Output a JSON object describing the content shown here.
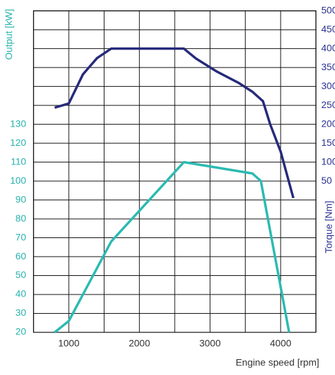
{
  "chart_data": {
    "type": "line",
    "x_label": "Engine speed [rpm]",
    "y_label": "Output [kW]",
    "y2_label": "Torque [Nm]",
    "xlim": [
      500,
      4500
    ],
    "xticks": [
      1000,
      2000,
      3000,
      4000
    ],
    "xgrid": [
      500,
      1000,
      1500,
      2000,
      2500,
      3000,
      3500,
      4000,
      4500
    ],
    "ylim": [
      20,
      190
    ],
    "yticks": [
      20,
      30,
      40,
      50,
      60,
      70,
      80,
      90,
      100,
      110,
      120,
      130
    ],
    "ygrid": [
      20,
      30,
      40,
      50,
      60,
      70,
      80,
      90,
      100,
      110,
      120,
      130,
      140,
      150,
      160,
      170,
      180,
      190
    ],
    "y2lim": [
      -350,
      500
    ],
    "y2ticks": [
      50,
      100,
      150,
      200,
      250,
      300,
      350,
      400,
      450,
      500
    ],
    "grid": true,
    "y_color": "#27b3ad",
    "y2_color": "#2a3192",
    "series": [
      {
        "name": "Output",
        "color": "#2bbab2",
        "axis": "y",
        "x": [
          800,
          1000,
          1600,
          2630,
          3600,
          3720,
          4120
        ],
        "values": [
          20,
          26,
          68,
          110,
          104,
          100,
          20
        ]
      },
      {
        "name": "Torque",
        "color": "#262a7a",
        "axis": "y2",
        "x": [
          800,
          1000,
          1200,
          1400,
          1600,
          2630,
          2800,
          3100,
          3400,
          3600,
          3750,
          3850,
          4000,
          4180
        ],
        "values": [
          244,
          255,
          332,
          375,
          400,
          400,
          374,
          339,
          310,
          286,
          261,
          201,
          128,
          5
        ]
      }
    ]
  }
}
